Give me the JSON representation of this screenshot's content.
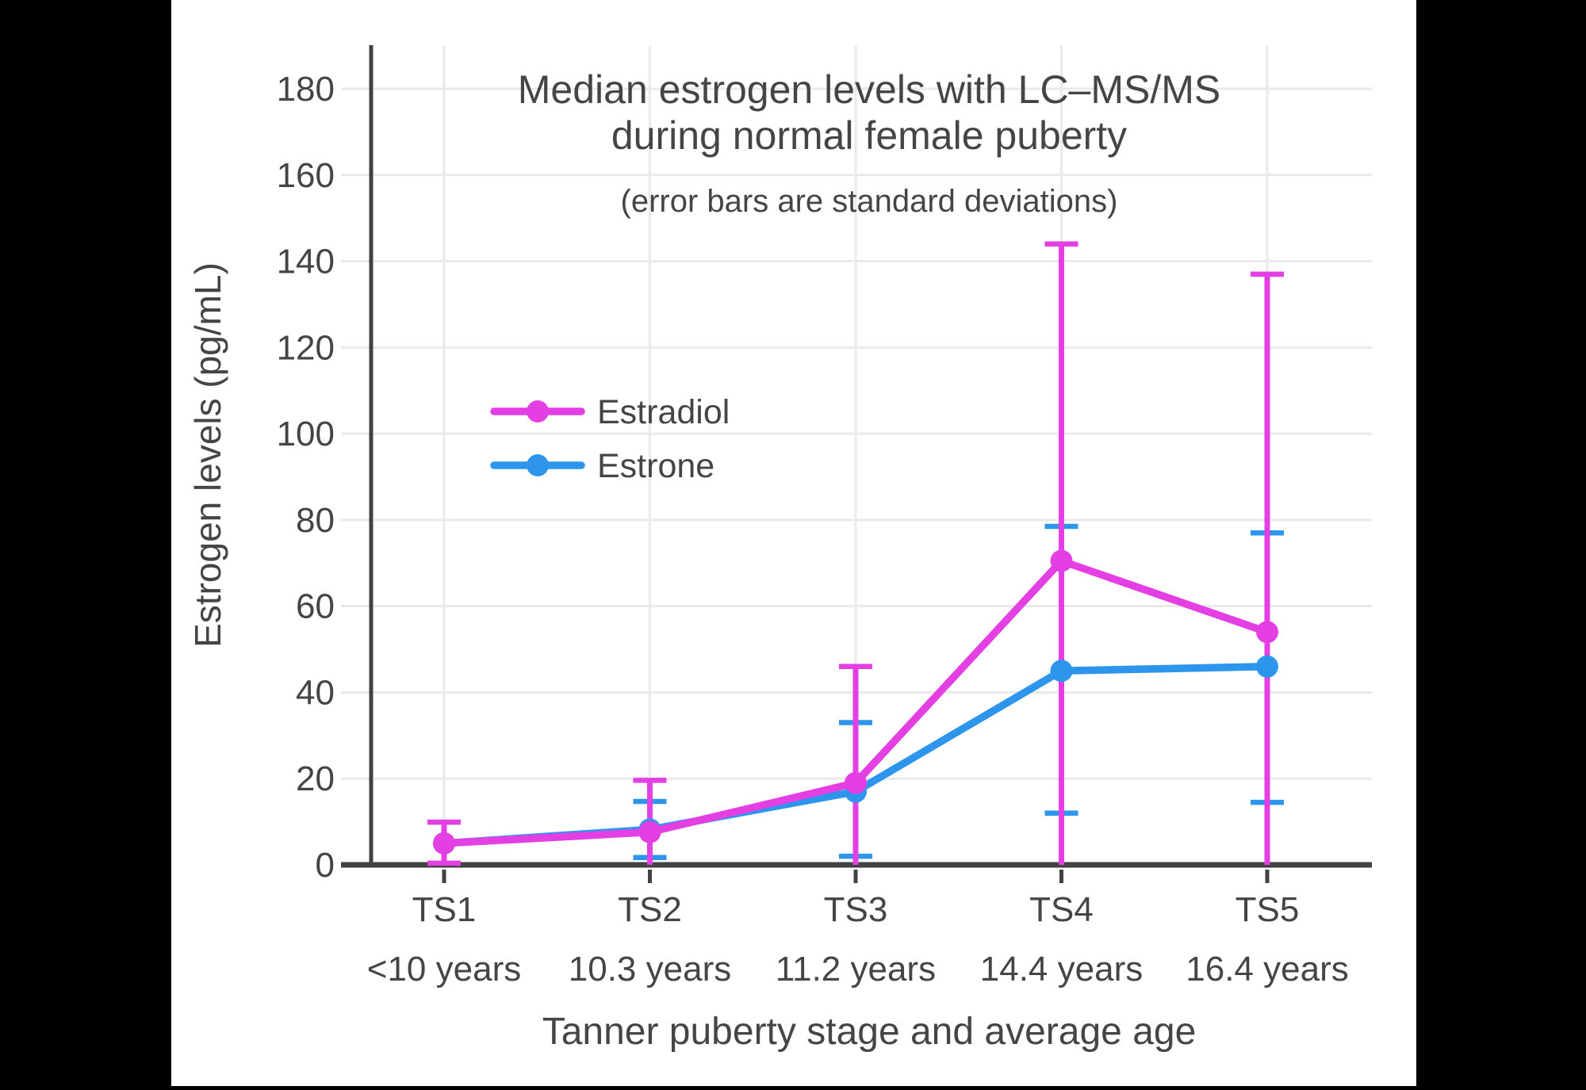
{
  "frame": {
    "background": "#000000",
    "panel_background": "#ffffff"
  },
  "colors": {
    "estradiol": "#E33FE3",
    "estrone": "#2D96EC",
    "text": "#454545",
    "axis": "#424242",
    "grid": "#EAEAEA"
  },
  "chart_data": {
    "type": "line",
    "title": "Median estrogen levels with LC–MS/MS during normal female puberty",
    "title_lines": [
      "Median estrogen levels with LC–MS/MS",
      "during normal female puberty"
    ],
    "subtitle": "(error bars are standard deviations)",
    "xlabel": "Tanner puberty stage and average age",
    "ylabel": "Estrogen levels (pg/mL)",
    "ylim": [
      0,
      190
    ],
    "yticks": [
      0,
      20,
      40,
      60,
      80,
      100,
      120,
      140,
      160,
      180
    ],
    "grid": true,
    "error_bars": "standard deviations",
    "legend": {
      "position": "middle-left",
      "entries": [
        "Estradiol",
        "Estrone"
      ]
    },
    "categories": [
      {
        "stage": "TS1",
        "age": "<10 years"
      },
      {
        "stage": "TS2",
        "age": "10.3 years"
      },
      {
        "stage": "TS3",
        "age": "11.2 years"
      },
      {
        "stage": "TS4",
        "age": "14.4 years"
      },
      {
        "stage": "TS5",
        "age": "16.4 years"
      }
    ],
    "series": [
      {
        "name": "Estradiol",
        "color_key": "estradiol",
        "values": [
          5,
          7.6,
          19,
          70.5,
          54
        ],
        "error_upper": [
          9.9,
          19.6,
          46,
          144,
          137
        ],
        "error_lower": [
          0.4,
          null,
          null,
          null,
          null
        ]
      },
      {
        "name": "Estrone",
        "color_key": "estrone",
        "values": [
          5,
          8.2,
          17,
          45,
          46
        ],
        "error_upper": [
          null,
          14.7,
          33,
          78.5,
          77
        ],
        "error_lower": [
          null,
          1.7,
          2,
          12,
          14.5
        ]
      }
    ]
  }
}
